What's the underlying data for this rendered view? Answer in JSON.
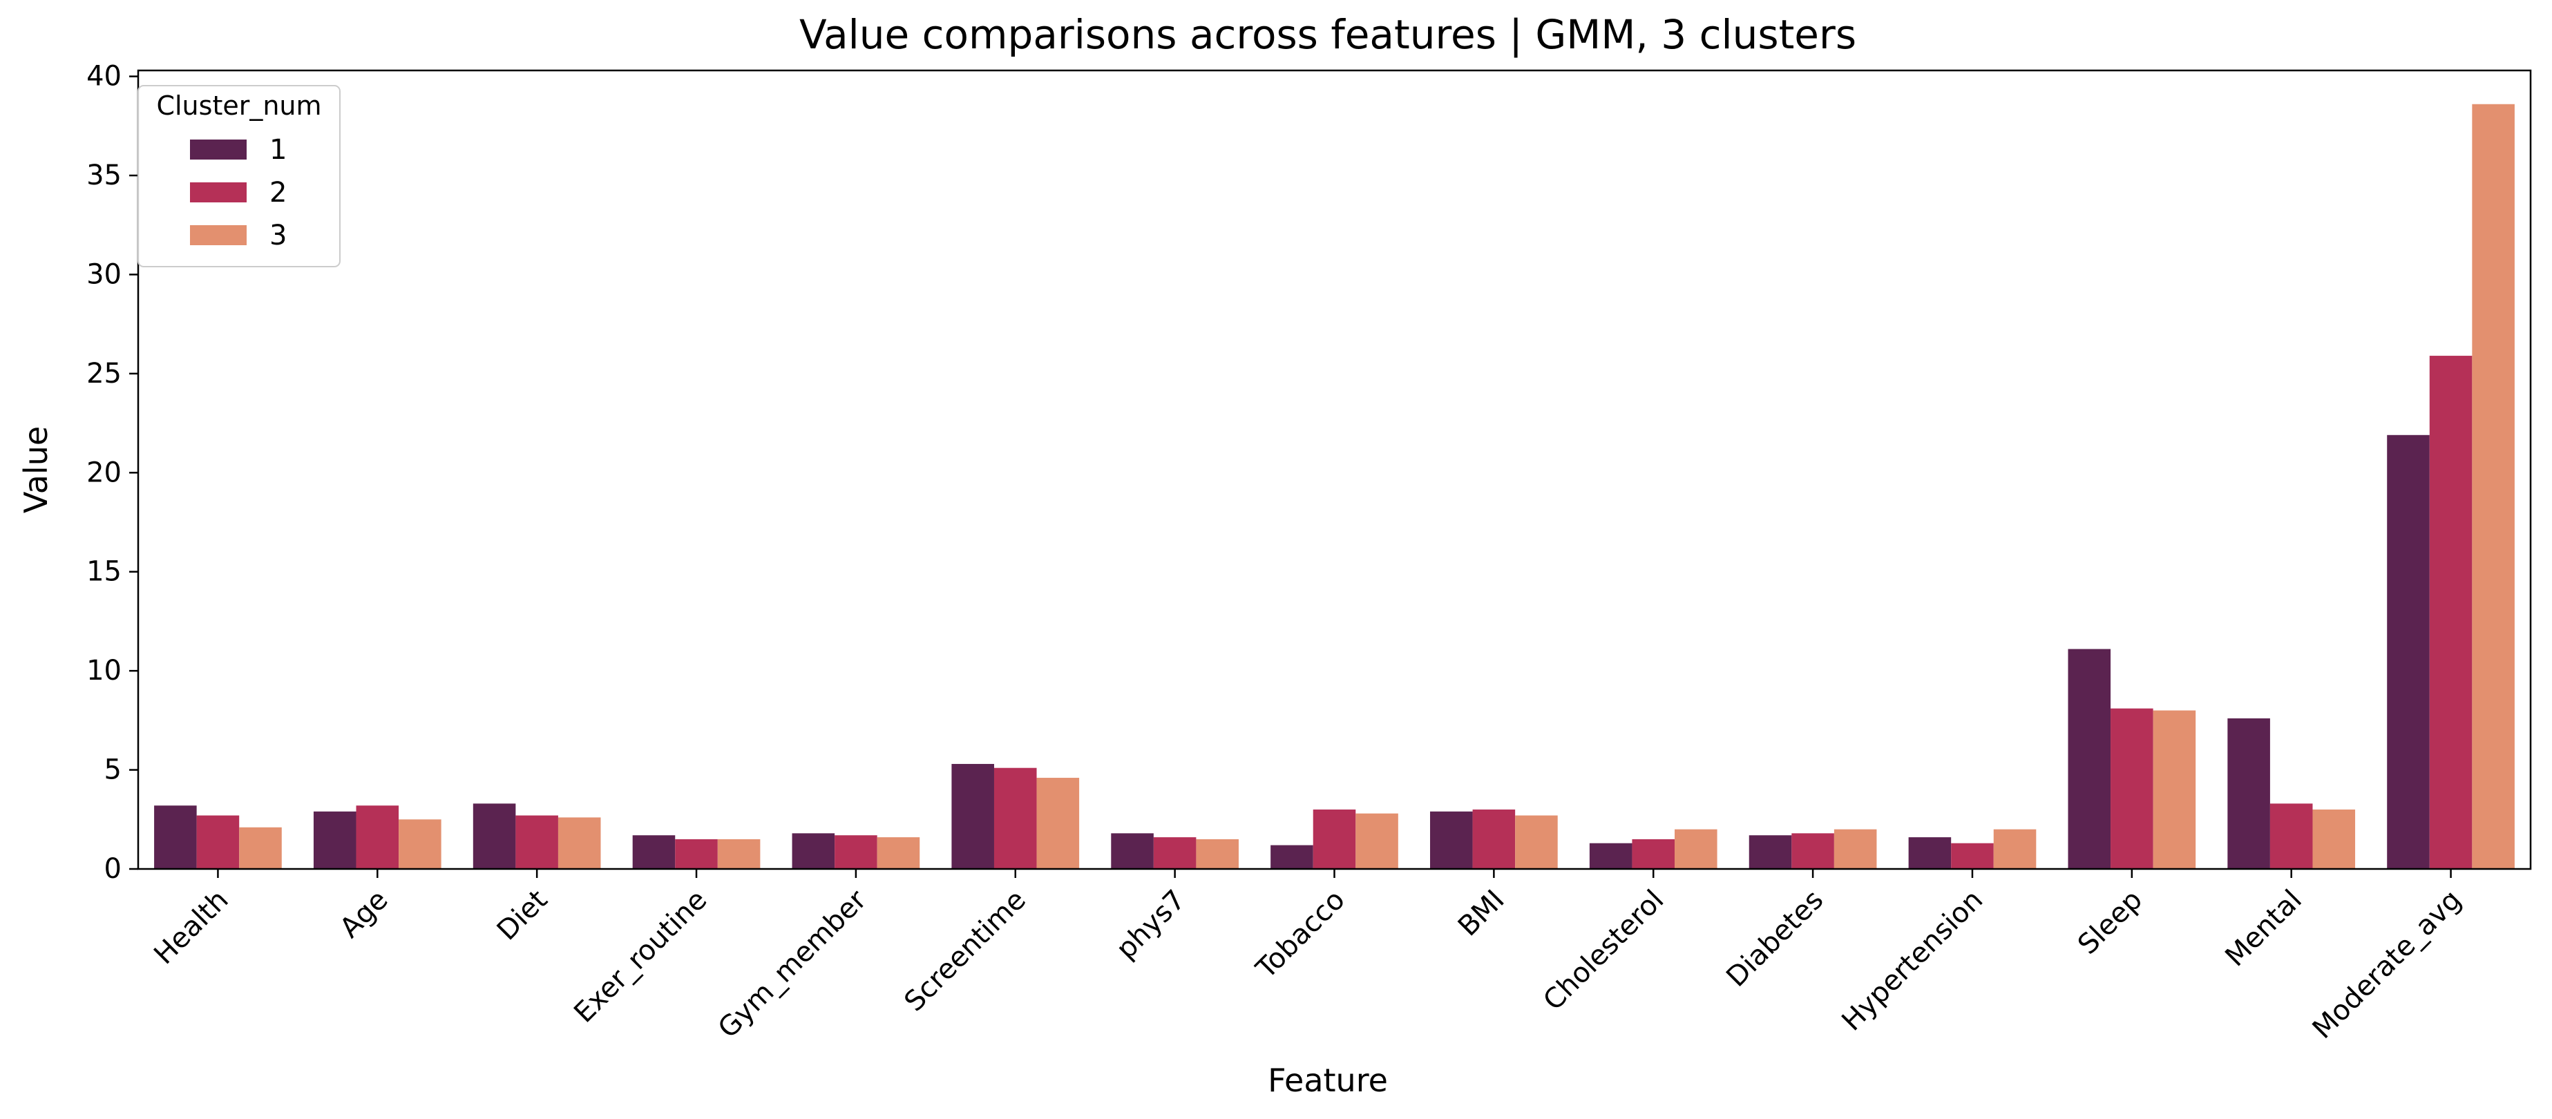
{
  "chart_data": {
    "type": "bar",
    "title": "Value comparisons across features | GMM, 3 clusters",
    "xlabel": "Feature",
    "ylabel": "Value",
    "ylim": [
      0,
      40.3
    ],
    "yticks": [
      0,
      5,
      10,
      15,
      20,
      25,
      30,
      35,
      40
    ],
    "grid": false,
    "legend": {
      "title": "Cluster_num",
      "placement": "top-left"
    },
    "categories": [
      "Health",
      "Age",
      "Diet",
      "Exer_routine",
      "Gym_member",
      "Screentime",
      "phys7",
      "Tobacco",
      "BMI",
      "Cholesterol",
      "Diabetes",
      "Hypertension",
      "Sleep",
      "Mental",
      "Moderate_avg"
    ],
    "series": [
      {
        "name": "1",
        "color": "#5b2350",
        "values": [
          3.2,
          2.9,
          3.3,
          1.7,
          1.8,
          5.3,
          1.8,
          1.2,
          2.9,
          1.3,
          1.7,
          1.6,
          11.1,
          7.6,
          21.9
        ]
      },
      {
        "name": "2",
        "color": "#b53057",
        "values": [
          2.7,
          3.2,
          2.7,
          1.5,
          1.7,
          5.1,
          1.6,
          3.0,
          3.0,
          1.5,
          1.8,
          1.3,
          8.1,
          3.3,
          25.9
        ]
      },
      {
        "name": "3",
        "color": "#e3906f",
        "values": [
          2.1,
          2.5,
          2.6,
          1.5,
          1.6,
          4.6,
          1.5,
          2.8,
          2.7,
          2.0,
          2.0,
          2.0,
          8.0,
          3.0,
          38.6
        ]
      }
    ]
  }
}
